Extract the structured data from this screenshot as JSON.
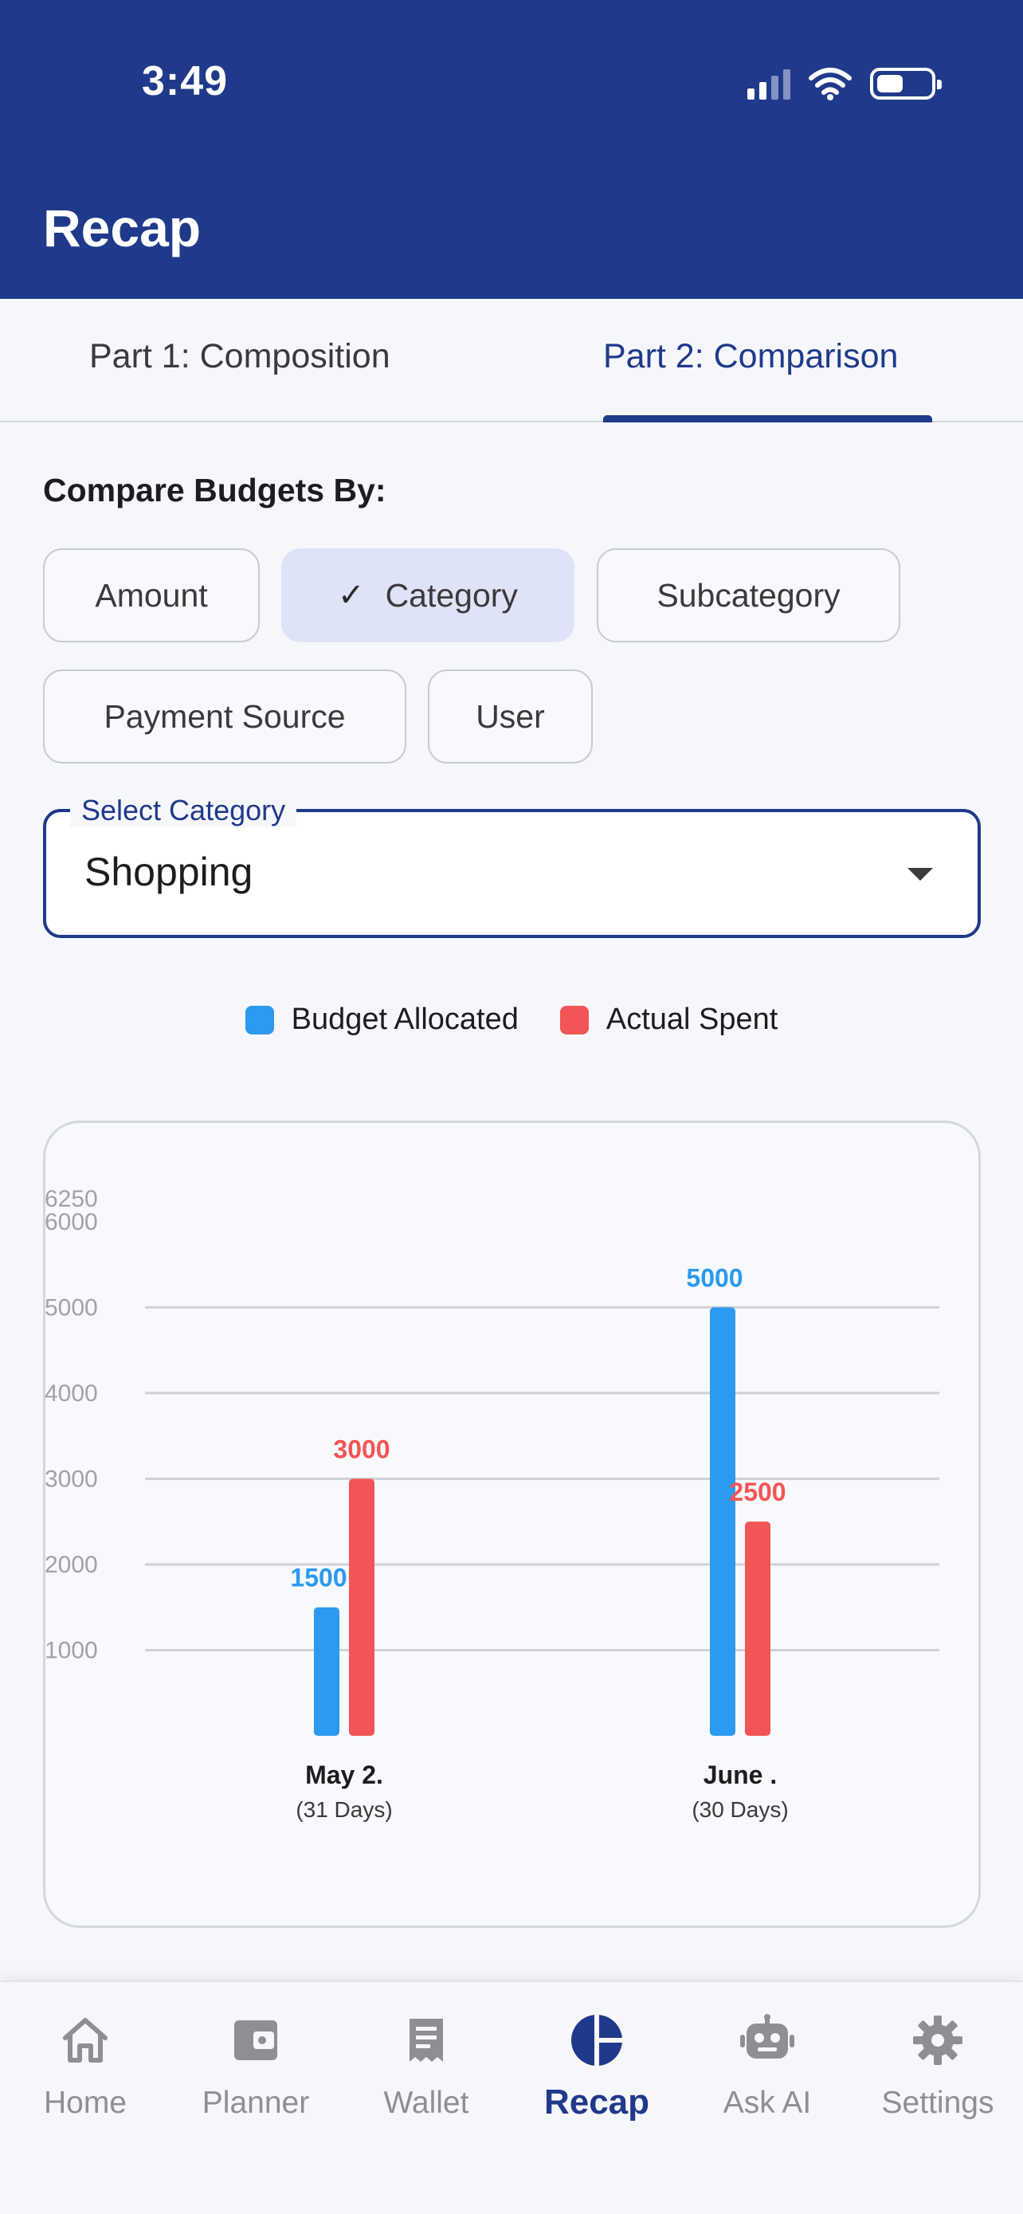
{
  "status_bar": {
    "time": "3:49"
  },
  "header": {
    "title": "Recap"
  },
  "tabs": [
    {
      "label": "Part 1: Composition",
      "active": false
    },
    {
      "label": "Part 2: Comparison",
      "active": true
    }
  ],
  "compare": {
    "label": "Compare Budgets By:",
    "options": [
      {
        "label": "Amount",
        "selected": false
      },
      {
        "label": "Category",
        "selected": true
      },
      {
        "label": "Subcategory",
        "selected": false
      },
      {
        "label": "Payment Source",
        "selected": false
      },
      {
        "label": "User",
        "selected": false
      }
    ]
  },
  "select": {
    "label": "Select Category",
    "value": "Shopping"
  },
  "legend": [
    {
      "label": "Budget Allocated",
      "color": "#2b9af0"
    },
    {
      "label": "Actual Spent",
      "color": "#f25555"
    }
  ],
  "chart_data": {
    "type": "bar",
    "categories": [
      "May 2.",
      "June ."
    ],
    "category_sublabels": [
      "(31 Days)",
      "(30 Days)"
    ],
    "series": [
      {
        "name": "Budget Allocated",
        "values": [
          1500,
          5000
        ],
        "color": "#2b9af0"
      },
      {
        "name": "Actual Spent",
        "values": [
          3000,
          2500
        ],
        "color": "#f25555"
      }
    ],
    "yticks": [
      "1000",
      "2000",
      "3000",
      "4000",
      "5000",
      "6000",
      "6250"
    ],
    "ylim": [
      0,
      6250
    ],
    "grid": true
  },
  "bottom_nav": [
    {
      "label": "Home",
      "icon": "home-icon",
      "active": false
    },
    {
      "label": "Planner",
      "icon": "wallet-icon",
      "active": false
    },
    {
      "label": "Wallet",
      "icon": "receipt-icon",
      "active": false
    },
    {
      "label": "Recap",
      "icon": "pie-chart-icon",
      "active": true
    },
    {
      "label": "Ask AI",
      "icon": "robot-icon",
      "active": false
    },
    {
      "label": "Settings",
      "icon": "gear-icon",
      "active": false
    }
  ]
}
